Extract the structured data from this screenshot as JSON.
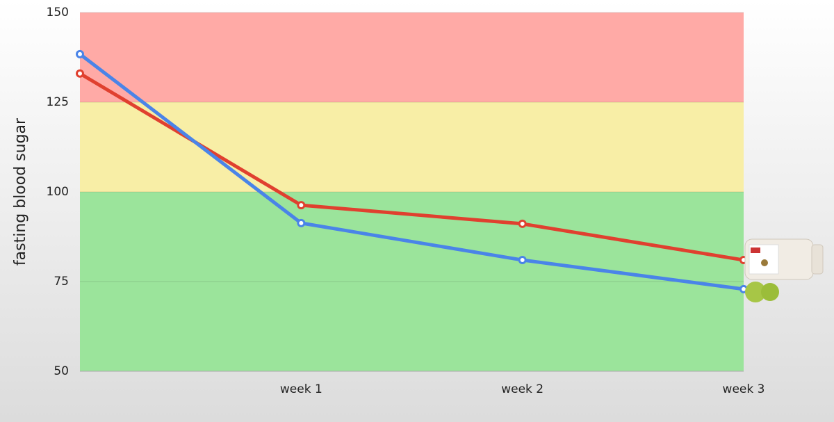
{
  "chart_data": {
    "type": "line",
    "y_label": "fasting blood sugar",
    "categories": [
      null,
      "week 1",
      "week 2",
      "week 3"
    ],
    "series": [
      {
        "color": "#e0402f",
        "values": [
          133,
          96.3,
          91.1,
          81
        ]
      },
      {
        "color": "#4a84e8",
        "values": [
          138.4,
          91.3,
          81,
          72.9
        ]
      }
    ],
    "ylim": [
      50,
      150
    ],
    "yticks": [
      50,
      75,
      100,
      125,
      150
    ],
    "bands": [
      {
        "from": 125,
        "to": 150,
        "color": "#ffaaa6"
      },
      {
        "from": 100,
        "to": 125,
        "color": "#f8eea6"
      },
      {
        "from": 50,
        "to": 100,
        "color": "#9be49b"
      }
    ],
    "grid": true
  }
}
